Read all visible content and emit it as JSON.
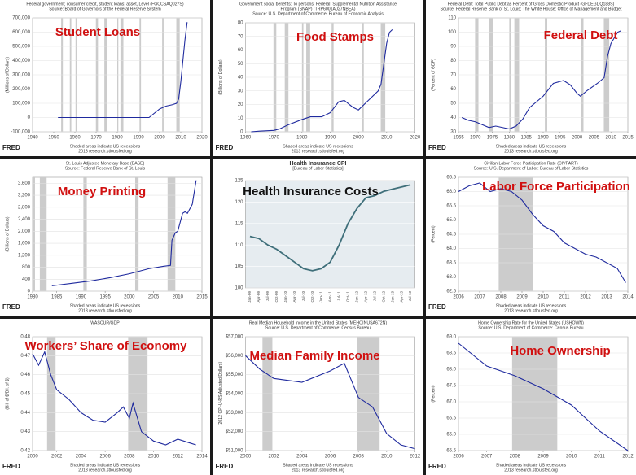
{
  "chart_data": [
    {
      "type": "line",
      "header": [
        "Federal government; consumer credit, student loans; asset, Level (FGCCSAQ027S)",
        "Source: Board of Governors of the Federal Reserve System"
      ],
      "title": "Student Loans",
      "title_color": "#d01010",
      "ylabel": "(Millions of Dollars)",
      "color": "#1f2a9e",
      "x": [
        1952,
        1960,
        1970,
        1980,
        1990,
        1995,
        2000,
        2003,
        2006,
        2008,
        2009,
        2010,
        2011,
        2012,
        2013
      ],
      "values": [
        0,
        0,
        0,
        0,
        0,
        0,
        60000,
        80000,
        90000,
        100000,
        130000,
        250000,
        400000,
        550000,
        670000
      ],
      "xlim": [
        1940,
        2020
      ],
      "xticks": [
        1940,
        1950,
        1960,
        1970,
        1980,
        1990,
        2000,
        2010,
        2020
      ],
      "ylim": [
        -100000,
        700000
      ],
      "yticks": [
        {
          "value": -100000,
          "label": "-100,000"
        },
        0,
        {
          "value": 100000,
          "label": "100,000"
        },
        {
          "value": 200000,
          "label": "200,000"
        },
        {
          "value": 300000,
          "label": "300,000"
        },
        {
          "value": 400000,
          "label": "400,000"
        },
        {
          "value": 500000,
          "label": "500,000"
        },
        {
          "value": 600000,
          "label": "600,000"
        },
        {
          "value": 700000,
          "label": "700,000"
        }
      ],
      "recessions": [
        [
          1953.5,
          1954.3
        ],
        [
          1957.6,
          1958.3
        ],
        [
          1960.3,
          1961.1
        ],
        [
          1969.9,
          1970.9
        ],
        [
          1973.9,
          1975.2
        ],
        [
          1980,
          1980.5
        ],
        [
          1981.5,
          1982.9
        ],
        [
          1990.5,
          1991.2
        ],
        [
          2001.2,
          2001.9
        ],
        [
          2007.9,
          2009.5
        ]
      ],
      "footer": [
        "Shaded areas indicate US recessions",
        "2013 research.stlouisfed.org"
      ],
      "brand": "FRED",
      "grid": true
    },
    {
      "type": "line",
      "header": [
        "Government social benefits: To persons: Federal: Supplemental Nutrition Assistance",
        "Program (SNAP) (TRP6001A027NBEA)",
        "Source: U.S. Department of Commerce: Bureau of Economic Analysis"
      ],
      "title": "Food Stamps",
      "title_color": "#d01010",
      "ylabel": "(Billions of Dollars)",
      "color": "#1f2a9e",
      "x": [
        1962,
        1965,
        1970,
        1972,
        1975,
        1980,
        1983,
        1987,
        1990,
        1993,
        1995,
        1998,
        2000,
        2003,
        2007,
        2008,
        2009,
        2010,
        2011,
        2012
      ],
      "values": [
        0,
        0.5,
        1,
        2,
        5,
        9,
        11,
        11,
        14,
        22,
        23,
        18,
        16,
        22,
        30,
        35,
        50,
        65,
        73,
        75
      ],
      "xlim": [
        1960,
        2020
      ],
      "xticks": [
        1960,
        1970,
        1980,
        1990,
        2000,
        2010,
        2020
      ],
      "ylim": [
        0,
        80
      ],
      "yticks": [
        0,
        10,
        20,
        30,
        40,
        50,
        60,
        70,
        80
      ],
      "recessions": [
        [
          1969.9,
          1970.9
        ],
        [
          1973.9,
          1975.2
        ],
        [
          1980,
          1980.5
        ],
        [
          1981.5,
          1982.9
        ],
        [
          1990.5,
          1991.2
        ],
        [
          2001.2,
          2001.9
        ],
        [
          2007.9,
          2009.5
        ]
      ],
      "footer": [
        "Shaded areas indicate US recessions",
        "2013 research.stlouisfed.org"
      ],
      "brand": "FRED",
      "grid": true
    },
    {
      "type": "line",
      "header": [
        "Federal Debt: Total Public Debt as Percent of Gross Domestic Product (GFDEGDQ188S)",
        "Source: Federal Reserve Bank of St. Louis; The White House: Office of Management and Budget"
      ],
      "title": "Federal Debt",
      "title_color": "#d01010",
      "ylabel": "(Percent of GDP)",
      "color": "#1f2a9e",
      "x": [
        1966,
        1968,
        1970,
        1972,
        1974,
        1976,
        1978,
        1980,
        1982,
        1984,
        1986,
        1988,
        1990,
        1993,
        1996,
        1998,
        2000,
        2001,
        2003,
        2006,
        2008,
        2009,
        2010,
        2011,
        2012,
        2013
      ],
      "values": [
        40,
        38,
        37,
        35,
        33,
        34,
        33,
        32,
        34,
        39,
        47,
        51,
        55,
        64,
        66,
        63,
        57,
        55,
        59,
        64,
        68,
        83,
        92,
        96,
        100,
        101
      ],
      "xlim": [
        1965,
        2015
      ],
      "xticks": [
        1965,
        1970,
        1975,
        1980,
        1985,
        1990,
        1995,
        2000,
        2005,
        2010,
        2015
      ],
      "ylim": [
        30,
        110
      ],
      "yticks": [
        30,
        40,
        50,
        60,
        70,
        80,
        90,
        100,
        110
      ],
      "recessions": [
        [
          1969.9,
          1970.9
        ],
        [
          1973.9,
          1975.2
        ],
        [
          1980,
          1980.5
        ],
        [
          1981.5,
          1982.9
        ],
        [
          1990.5,
          1991.2
        ],
        [
          2001.2,
          2001.9
        ],
        [
          2007.9,
          2009.5
        ]
      ],
      "footer": [
        "Shaded areas indicate US recessions",
        "2013 research.stlouisfed.org"
      ],
      "brand": "FRED",
      "grid": true
    },
    {
      "type": "line",
      "header": [
        "St. Louis Adjusted Monetary Base (BASE)",
        "Source: Federal Reserve Bank of St. Louis"
      ],
      "title": "Money Printing",
      "title_color": "#d01010",
      "ylabel": "(Billions of Dollars)",
      "color": "#1f2a9e",
      "x": [
        1984,
        1988,
        1992,
        1996,
        2000,
        2004,
        2007,
        2008.5,
        2008.8,
        2009.5,
        2010,
        2011,
        2011.5,
        2012,
        2013,
        2013.8
      ],
      "values": [
        180,
        260,
        340,
        450,
        580,
        750,
        830,
        860,
        1700,
        1950,
        2000,
        2600,
        2650,
        2600,
        2900,
        3700
      ],
      "xlim": [
        1980,
        2015
      ],
      "xticks": [
        1980,
        1985,
        1990,
        1995,
        2000,
        2005,
        2010,
        2015
      ],
      "ylim": [
        0,
        3800
      ],
      "yticks": [
        0,
        400,
        800,
        {
          "value": 1200,
          "label": "1,200"
        },
        {
          "value": 1600,
          "label": "1,600"
        },
        {
          "value": 2000,
          "label": "2,000"
        },
        {
          "value": 2400,
          "label": "2,400"
        },
        {
          "value": 2800,
          "label": "2,800"
        },
        {
          "value": 3200,
          "label": "3,200"
        },
        {
          "value": 3600,
          "label": "3,600"
        }
      ],
      "recessions": [
        [
          1980,
          1980.5
        ],
        [
          1981.5,
          1982.9
        ],
        [
          1990.5,
          1991.2
        ],
        [
          2001.2,
          2001.9
        ],
        [
          2007.9,
          2009.5
        ]
      ],
      "footer": [
        "Shaded areas indicate US recessions",
        "2013 research.stlouisfed.org"
      ],
      "brand": "FRED",
      "grid": true
    },
    {
      "type": "line",
      "header": [
        "Health Insurance CPI",
        "[Bureau of Labor Statistics]"
      ],
      "title": "Health Insurance Costs",
      "title_color": "#111111",
      "color": "#3f6f7a",
      "categories": [
        "Jan-09",
        "Apr-09",
        "Jul-09",
        "Oct-09",
        "Jan-10",
        "Apr-10",
        "Jul-10",
        "Oct-10",
        "Jan-11",
        "Apr-11",
        "Jul-11",
        "Oct-11",
        "Jan-12",
        "Apr-12",
        "Jul-12",
        "Oct-12",
        "Jan-13",
        "Apr-13",
        "Jul-13"
      ],
      "values": [
        112,
        111.5,
        110,
        109,
        107.5,
        106,
        104.5,
        104,
        104.5,
        106,
        110,
        115,
        118.5,
        121,
        121.5,
        122.5,
        123,
        123.5,
        124
      ],
      "ylim": [
        100,
        125
      ],
      "yticks": [
        100,
        105,
        110,
        115,
        120,
        125
      ],
      "grid": true
    },
    {
      "type": "line",
      "header": [
        "Civilian Labor Force Participation Rate (CIVPART)",
        "Source: U.S. Department of Labor: Bureau of Labor Statistics"
      ],
      "title": "Labor Force Participation",
      "title_color": "#d01010",
      "ylabel": "(Percent)",
      "color": "#1f2a9e",
      "x": [
        2006,
        2006.5,
        2007,
        2007.5,
        2008,
        2008.5,
        2009,
        2009.5,
        2010,
        2010.5,
        2011,
        2011.5,
        2012,
        2012.5,
        2013,
        2013.5,
        2013.9
      ],
      "values": [
        66.0,
        66.2,
        66.3,
        66.0,
        66.1,
        66.0,
        65.7,
        65.2,
        64.8,
        64.6,
        64.2,
        64.0,
        63.8,
        63.7,
        63.5,
        63.3,
        62.8
      ],
      "xlim": [
        2006,
        2014
      ],
      "xticks": [
        2006,
        2007,
        2008,
        2009,
        2010,
        2011,
        2012,
        2013,
        2014
      ],
      "ylim": [
        62.5,
        66.5
      ],
      "yticks": [
        62.5,
        {
          "value": 63,
          "label": "63.0"
        },
        63.5,
        {
          "value": 64,
          "label": "64.0"
        },
        64.5,
        {
          "value": 65,
          "label": "65.0"
        },
        65.5,
        {
          "value": 66,
          "label": "66.0"
        },
        66.5
      ],
      "recessions": [
        [
          2007.9,
          2009.5
        ]
      ],
      "footer": [
        "Shaded areas indicate US recessions",
        "2013 research.stlouisfed.org"
      ],
      "brand": "FRED",
      "grid": true
    },
    {
      "type": "line",
      "header": [
        "WASCUR/GDP"
      ],
      "title": "Workers’ Share of Economy",
      "title_color": "#d01010",
      "ylabel": "(Bil. of $/Bil. of $)",
      "color": "#1f2a9e",
      "x": [
        2000,
        2000.5,
        2001,
        2001.5,
        2002,
        2003,
        2004,
        2005,
        2006,
        2007,
        2007.5,
        2008,
        2008.3,
        2009,
        2010,
        2011,
        2012,
        2013,
        2013.5
      ],
      "values": [
        0.471,
        0.465,
        0.472,
        0.46,
        0.452,
        0.447,
        0.44,
        0.436,
        0.435,
        0.44,
        0.443,
        0.437,
        0.445,
        0.43,
        0.425,
        0.423,
        0.426,
        0.424,
        0.423
      ],
      "xlim": [
        2000,
        2014
      ],
      "xticks": [
        2000,
        2002,
        2004,
        2006,
        2008,
        2010,
        2012,
        2014
      ],
      "ylim": [
        0.42,
        0.48
      ],
      "yticks": [
        0.42,
        0.43,
        0.44,
        0.45,
        0.46,
        0.47,
        0.48
      ],
      "recessions": [
        [
          2001.2,
          2001.9
        ],
        [
          2007.9,
          2009.5
        ]
      ],
      "footer": [
        "Shaded areas indicate US recessions",
        "2013 research.stlouisfed.org"
      ],
      "brand": "FRED",
      "grid": true
    },
    {
      "type": "line",
      "header": [
        "Real Median Household Income in the United States (MEHOINUSA672N)",
        "Source: U.S. Department of Commerce: Census Bureau"
      ],
      "title": "Median Family Income",
      "title_color": "#d01010",
      "ylabel": "(2012 CPI-U-RS Adjusted Dollars)",
      "color": "#1f2a9e",
      "x": [
        2000,
        2001,
        2002,
        2003,
        2004,
        2005,
        2006,
        2007,
        2008,
        2009,
        2010,
        2011,
        2012
      ],
      "values": [
        56000,
        55300,
        54800,
        54700,
        54600,
        54900,
        55200,
        55600,
        53800,
        53300,
        51900,
        51300,
        51100
      ],
      "xlim": [
        2000,
        2012
      ],
      "xticks": [
        2000,
        2002,
        2004,
        2006,
        2008,
        2010,
        2012
      ],
      "ylim": [
        51000,
        57000
      ],
      "yticks": [
        {
          "value": 51000,
          "label": "$51,000"
        },
        {
          "value": 52000,
          "label": "$52,000"
        },
        {
          "value": 53000,
          "label": "$53,000"
        },
        {
          "value": 54000,
          "label": "$54,000"
        },
        {
          "value": 55000,
          "label": "$55,000"
        },
        {
          "value": 56000,
          "label": "$56,000"
        },
        {
          "value": 57000,
          "label": "$57,000"
        }
      ],
      "recessions": [
        [
          2001.2,
          2001.9
        ],
        [
          2007.9,
          2009.5
        ]
      ],
      "footer": [
        "Shaded areas indicate US recessions",
        "2013 research.stlouisfed.org"
      ],
      "brand": "FRED",
      "grid": true
    },
    {
      "type": "line",
      "header": [
        "Home Ownership Rate for the United States (USHOWN)",
        "Source: U.S. Department of Commerce: Census Bureau"
      ],
      "title": "Home Ownership",
      "title_color": "#d01010",
      "ylabel": "(Percent)",
      "color": "#1f2a9e",
      "x": [
        2006,
        2007,
        2008,
        2009,
        2010,
        2011,
        2012
      ],
      "values": [
        68.8,
        68.1,
        67.8,
        67.4,
        66.9,
        66.1,
        65.5
      ],
      "xlim": [
        2006,
        2012
      ],
      "xticks": [
        2006,
        2007,
        2008,
        2009,
        2010,
        2011,
        2012
      ],
      "ylim": [
        65.5,
        69
      ],
      "yticks": [
        65.5,
        {
          "value": 66,
          "label": "66.0"
        },
        66.5,
        {
          "value": 67,
          "label": "67.0"
        },
        67.5,
        {
          "value": 68,
          "label": "68.0"
        },
        68.5,
        {
          "value": 69,
          "label": "69.0"
        }
      ],
      "recessions": [
        [
          2007.9,
          2009.5
        ]
      ],
      "footer": [
        "Shaded areas indicate US recessions",
        "2013 research.stlouisfed.org"
      ],
      "brand": "FRED",
      "grid": true
    }
  ]
}
